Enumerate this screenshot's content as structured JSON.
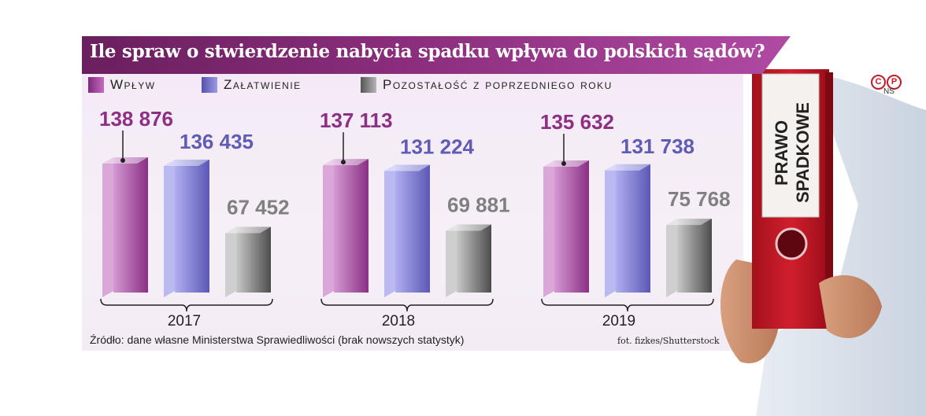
{
  "title": "Ile spraw o stwierdzenie nabycia spadku wpływa do polskich sądów?",
  "legend": [
    {
      "label": "Wpływ",
      "color": "#9b3d99"
    },
    {
      "label": "Załatwienie",
      "color": "#6f6cc3"
    },
    {
      "label": "Pozostałość z poprzedniego roku",
      "color": "#808080"
    }
  ],
  "chart_data": {
    "type": "bar",
    "categories": [
      "2017",
      "2018",
      "2019"
    ],
    "series": [
      {
        "name": "Wpływ",
        "values": [
          138876,
          137113,
          135632
        ],
        "labels": [
          "138 876",
          "137 113",
          "135 632"
        ],
        "color": "#9b3d99"
      },
      {
        "name": "Załatwienie",
        "values": [
          136435,
          131224,
          131738
        ],
        "labels": [
          "136 435",
          "131 224",
          "131 738"
        ],
        "color": "#6f6cc3"
      },
      {
        "name": "Pozostałość z poprzedniego roku",
        "values": [
          67452,
          69881,
          75768
        ],
        "labels": [
          "67 452",
          "69 881",
          "75 768"
        ],
        "color": "#808080"
      }
    ],
    "label_colors": [
      "#8e2f86",
      "#5f5cb5",
      "#808080"
    ]
  },
  "source": "Źródło: dane własne Ministerstwa Sprawiedliwości (brak nowszych statystyk)",
  "photo_credit": "fot. fizkes/Shutterstock",
  "copyright_marks": [
    "C",
    "P"
  ],
  "agency": "NS",
  "binder_label": [
    "PRAWO",
    "SPADKOWE"
  ]
}
